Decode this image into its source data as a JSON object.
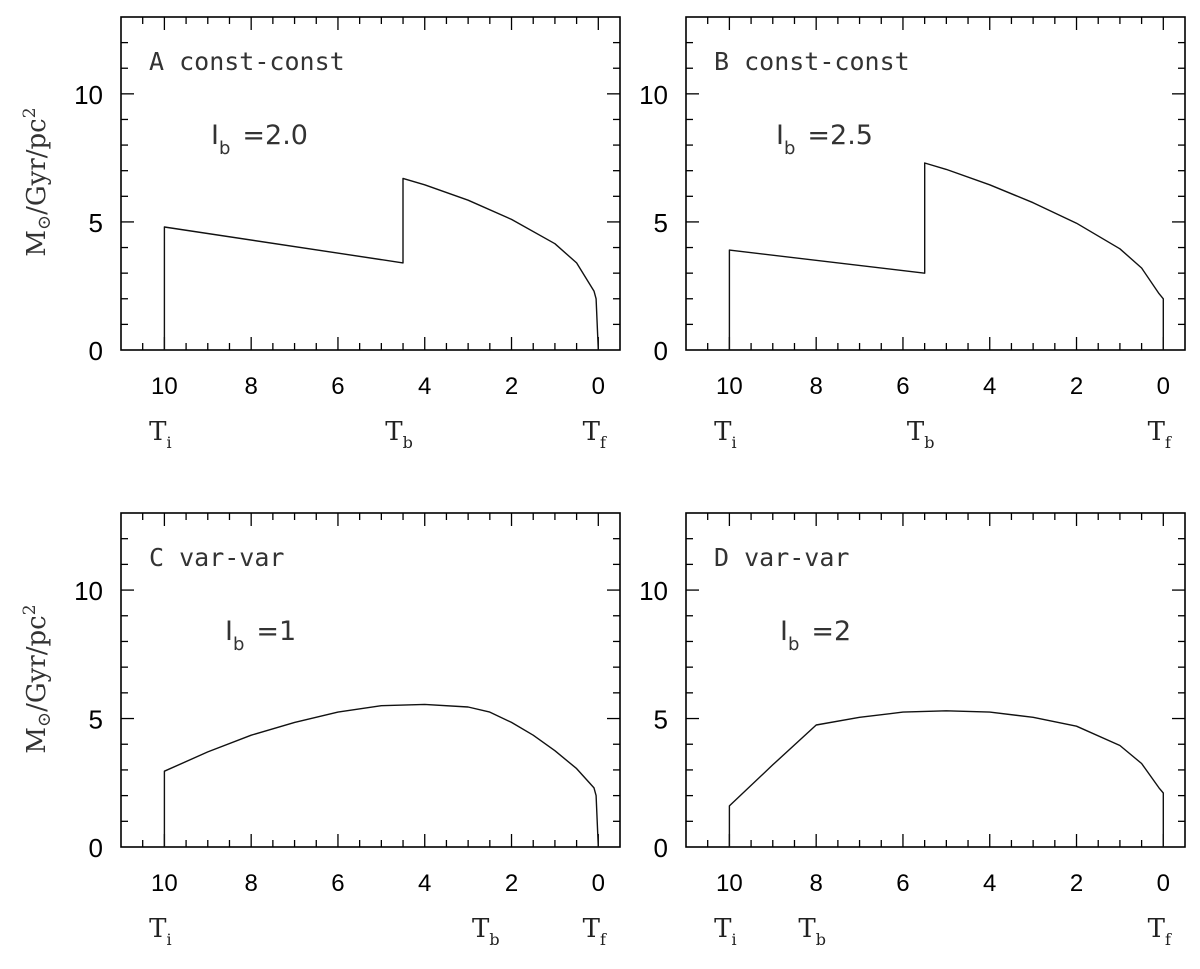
{
  "figure": {
    "ylabel_main": "M",
    "ylabel_sub": "⊙",
    "ylabel_rest": "/Gyr/pc",
    "ylabel_sup": "2"
  },
  "chart_data": [
    {
      "type": "line",
      "panel_label": "A const-const",
      "ib_letter": "I",
      "ib_sub": "b",
      "ib_value": "=2.0",
      "xlim": [
        11,
        -0.5
      ],
      "ylim": [
        0,
        13
      ],
      "x_ticks": [
        "10",
        "8",
        "6",
        "4",
        "2",
        "0"
      ],
      "y_ticks": [
        "0",
        "5",
        "10"
      ],
      "markers": [
        {
          "name": "T",
          "sub": "i",
          "x": 10
        },
        {
          "name": "T",
          "sub": "b",
          "x": 4.5
        },
        {
          "name": "T",
          "sub": "f",
          "x": 0
        }
      ],
      "series": [
        {
          "x": [
            10,
            10,
            4.5,
            4.5,
            4,
            3,
            2,
            1,
            0.5,
            0.1,
            0.05,
            0
          ],
          "y": [
            0,
            4.8,
            3.4,
            6.7,
            6.45,
            5.85,
            5.1,
            4.15,
            3.4,
            2.3,
            2,
            0
          ]
        }
      ]
    },
    {
      "type": "line",
      "panel_label": "B const-const",
      "ib_letter": "I",
      "ib_sub": "b",
      "ib_value": "=2.5",
      "xlim": [
        11,
        -0.5
      ],
      "ylim": [
        0,
        13
      ],
      "x_ticks": [
        "10",
        "8",
        "6",
        "4",
        "2",
        "0"
      ],
      "y_ticks": [
        "0",
        "5",
        "10"
      ],
      "markers": [
        {
          "name": "T",
          "sub": "i",
          "x": 10
        },
        {
          "name": "T",
          "sub": "b",
          "x": 5.5
        },
        {
          "name": "T",
          "sub": "f",
          "x": 0
        }
      ],
      "series": [
        {
          "x": [
            10,
            10,
            5.5,
            5.5,
            5,
            4,
            3,
            2,
            1,
            0.5,
            0.1,
            0,
            0
          ],
          "y": [
            0,
            3.9,
            3,
            7.3,
            7.05,
            6.45,
            5.75,
            4.95,
            3.95,
            3.2,
            2.2,
            2,
            0
          ]
        }
      ]
    },
    {
      "type": "line",
      "panel_label": "C var-var",
      "ib_letter": "I",
      "ib_sub": "b",
      "ib_value": "=1",
      "xlim": [
        11,
        -0.5
      ],
      "ylim": [
        0,
        13
      ],
      "x_ticks": [
        "10",
        "8",
        "6",
        "4",
        "2",
        "0"
      ],
      "y_ticks": [
        "0",
        "5",
        "10"
      ],
      "markers": [
        {
          "name": "T",
          "sub": "i",
          "x": 10
        },
        {
          "name": "T",
          "sub": "b",
          "x": 2.5
        },
        {
          "name": "T",
          "sub": "f",
          "x": 0
        }
      ],
      "series": [
        {
          "x": [
            10,
            10,
            9,
            8,
            7,
            6,
            5,
            4,
            3,
            2.5,
            2,
            1.5,
            1,
            0.5,
            0.1,
            0.05,
            0
          ],
          "y": [
            0,
            2.95,
            3.7,
            4.35,
            4.85,
            5.25,
            5.5,
            5.55,
            5.45,
            5.25,
            4.85,
            4.35,
            3.75,
            3.05,
            2.3,
            2,
            0
          ]
        }
      ]
    },
    {
      "type": "line",
      "panel_label": "D var-var",
      "ib_letter": "I",
      "ib_sub": "b",
      "ib_value": "=2",
      "xlim": [
        11,
        -0.5
      ],
      "ylim": [
        0,
        13
      ],
      "x_ticks": [
        "10",
        "8",
        "6",
        "4",
        "2",
        "0"
      ],
      "y_ticks": [
        "0",
        "5",
        "10"
      ],
      "markers": [
        {
          "name": "T",
          "sub": "i",
          "x": 10
        },
        {
          "name": "T",
          "sub": "b",
          "x": 8
        },
        {
          "name": "T",
          "sub": "f",
          "x": 0
        }
      ],
      "series": [
        {
          "x": [
            10,
            10,
            9,
            8,
            7,
            6,
            5,
            4,
            3,
            2,
            1,
            0.5,
            0.1,
            0,
            0
          ],
          "y": [
            0,
            1.6,
            3.2,
            4.75,
            5.05,
            5.25,
            5.3,
            5.25,
            5.05,
            4.7,
            3.95,
            3.25,
            2.3,
            2.1,
            0
          ]
        }
      ]
    }
  ]
}
